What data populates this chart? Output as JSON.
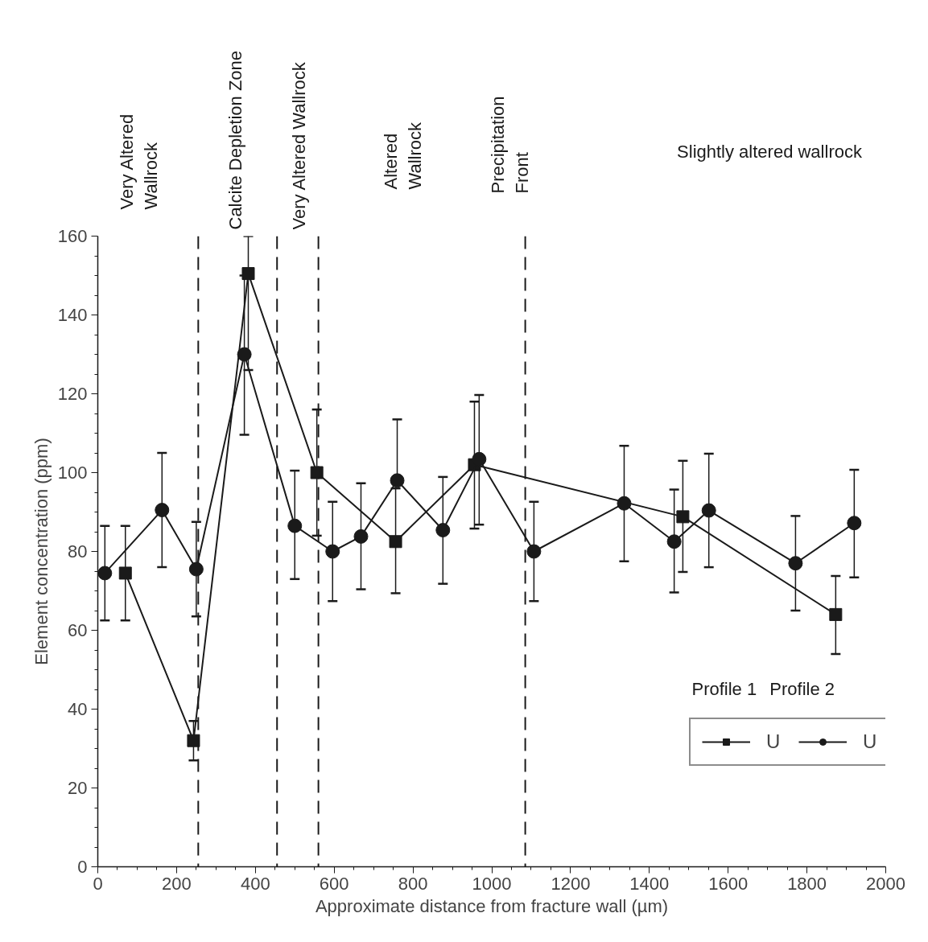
{
  "chart_data": {
    "type": "line",
    "xlabel": "Approximate distance from fracture wall (µm)",
    "ylabel": "Element concentration (ppm)",
    "xlim": [
      0,
      2000
    ],
    "xticks": [
      0,
      200,
      400,
      600,
      800,
      1000,
      1200,
      1400,
      1600,
      1800,
      2000
    ],
    "ylim": [
      0,
      160
    ],
    "yticks": [
      0,
      20,
      40,
      60,
      80,
      100,
      120,
      140,
      160
    ],
    "grid": false,
    "legend": "bottom right",
    "line_style": "solid",
    "series": [
      {
        "name": "U",
        "color": "#1a1a1a",
        "marker": "square",
        "x": [
          70,
          243,
          382,
          556,
          756,
          956,
          1485,
          1873
        ],
        "values": [
          74.5,
          32,
          150.5,
          100,
          82.5,
          102,
          88.8,
          64
        ],
        "errors": [
          12,
          [
            27,
            37
          ],
          [
            126,
            160
          ],
          [
            84,
            116
          ],
          [
            69.4,
            96
          ],
          [
            85.8,
            118
          ],
          [
            74.8,
            103
          ],
          [
            54,
            73.8
          ]
        ]
      },
      {
        "name": "U",
        "color": "#1a1a1a",
        "marker": "circle",
        "x": [
          18,
          163,
          250,
          372,
          500,
          596,
          668,
          760,
          876,
          968,
          1107,
          1336,
          1463,
          1551,
          1771,
          1920
        ],
        "values": [
          74.5,
          90.5,
          75.5,
          130,
          86.5,
          80,
          83.8,
          98,
          85.4,
          103.4,
          80,
          92.2,
          82.5,
          90.4,
          77,
          87.2
        ],
        "errors": [
          12,
          [
            76,
            105
          ],
          [
            63.5,
            87.5
          ],
          [
            109.6,
            150
          ],
          [
            73,
            100.5
          ],
          [
            67.4,
            92.6
          ],
          [
            70.4,
            97.3
          ],
          [
            98,
            113.5
          ],
          [
            71.8,
            98.9
          ],
          [
            86.8,
            119.7
          ],
          [
            67.4,
            92.6
          ],
          [
            77.5,
            106.8
          ],
          [
            69.6,
            95.7
          ],
          [
            76,
            104.8
          ],
          [
            65,
            89
          ],
          [
            73.4,
            100.7
          ]
        ]
      }
    ],
    "ref_lines": [
      {
        "axis": "x",
        "value": 255,
        "line_style": "dashed"
      },
      {
        "axis": "x",
        "value": 455,
        "line_style": "dashed"
      },
      {
        "axis": "x",
        "value": 560,
        "line_style": "dashed"
      },
      {
        "axis": "x",
        "value": 1085,
        "line_style": "dashed"
      }
    ],
    "annotations": [
      "Very Altered\nWallrock",
      "Calcite Depletion Zone",
      "Very Altered Wallrock",
      "Altered\nWallrock",
      "Precipitation\nFront",
      "Slightly altered wallrock",
      "Profile 1",
      "Profile 2"
    ]
  }
}
